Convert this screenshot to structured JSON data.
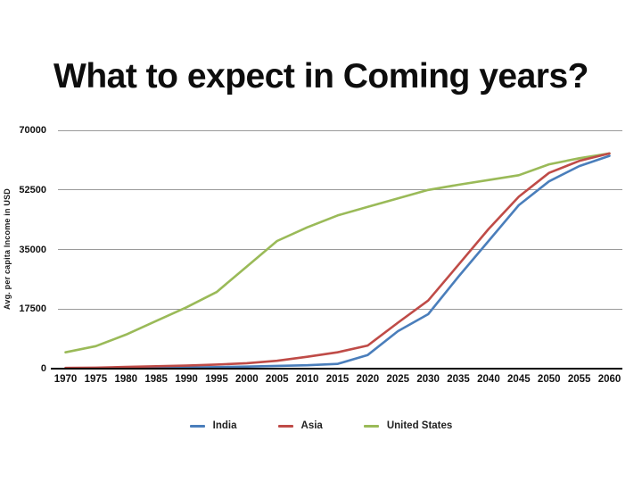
{
  "title": "What to expect in Coming years?",
  "chart_data": {
    "type": "line",
    "title": "What to expect in Coming years?",
    "xlabel": "",
    "ylabel": "Avg. per capita Income in USD",
    "ylim": [
      0,
      70000
    ],
    "y_ticks": [
      0,
      17500,
      35000,
      52500,
      70000
    ],
    "grid": "horizontal",
    "gridline_color": "#9a9a9a",
    "axis_color": "#000000",
    "legend_position": "bottom",
    "x": [
      1970,
      1975,
      1980,
      1985,
      1990,
      1995,
      2000,
      2005,
      2010,
      2015,
      2020,
      2025,
      2030,
      2035,
      2040,
      2045,
      2050,
      2055,
      2060
    ],
    "series": [
      {
        "name": "India",
        "color": "#4a7ebb",
        "values": [
          100,
          130,
          180,
          250,
          350,
          450,
          600,
          800,
          1000,
          1400,
          4000,
          11000,
          16000,
          27000,
          37500,
          48000,
          55000,
          59500,
          62500
        ]
      },
      {
        "name": "Asia",
        "color": "#bf4b47",
        "values": [
          200,
          300,
          500,
          700,
          900,
          1200,
          1600,
          2300,
          3500,
          4800,
          6800,
          13500,
          20000,
          30500,
          41000,
          50500,
          57500,
          61000,
          63200
        ]
      },
      {
        "name": "United States",
        "color": "#9aba58",
        "values": [
          4800,
          6600,
          10000,
          14000,
          18000,
          22500,
          30000,
          37500,
          41500,
          45000,
          47500,
          50000,
          52500,
          54000,
          55400,
          56800,
          60000,
          61800,
          63200
        ]
      }
    ]
  }
}
